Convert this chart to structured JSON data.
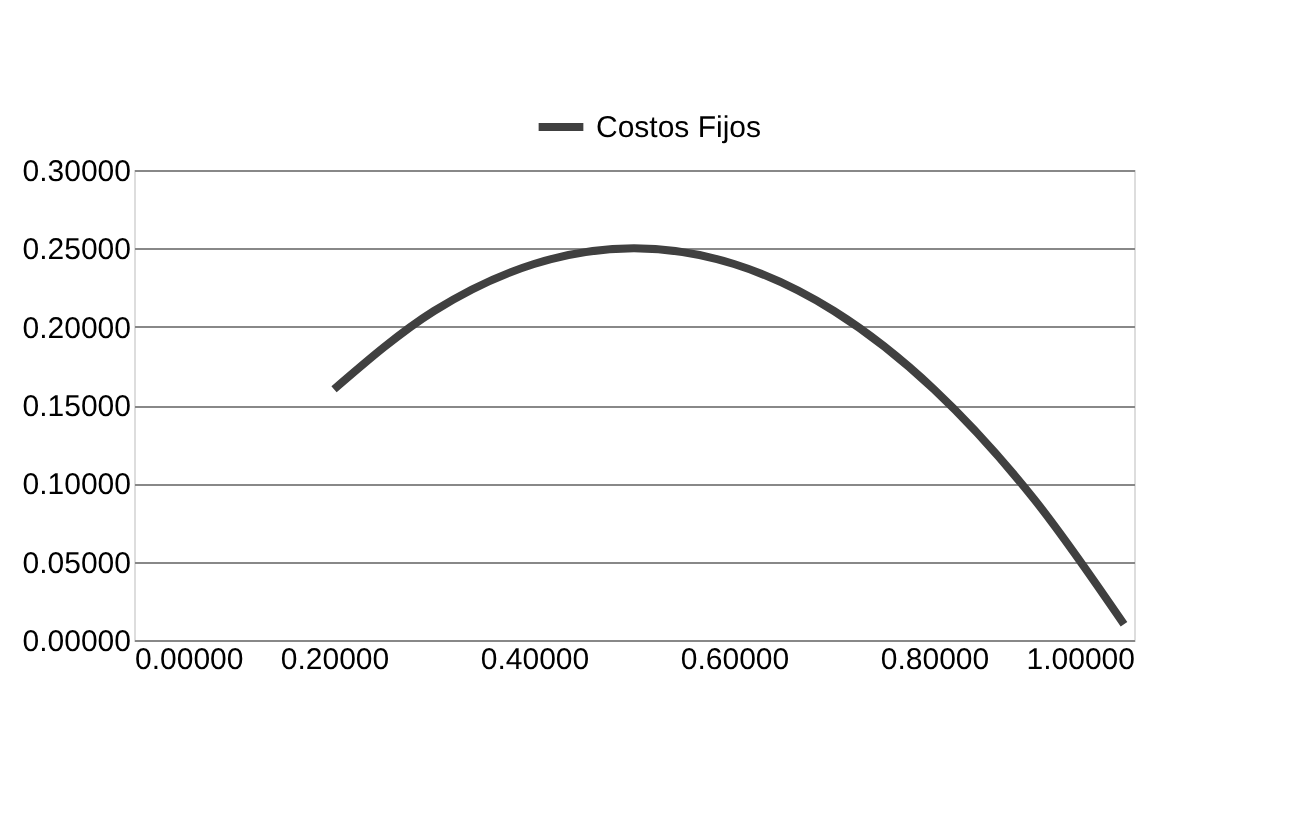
{
  "chart_data": {
    "type": "line",
    "x": [
      0.2,
      0.3,
      0.4,
      0.5,
      0.6,
      0.7,
      0.8,
      0.9,
      0.99
    ],
    "series": [
      {
        "name": "Costos Fijos",
        "color": "#404040",
        "values": [
          0.16,
          0.21,
          0.24,
          0.25,
          0.24,
          0.21,
          0.16,
          0.09,
          0.01
        ]
      }
    ],
    "xlim": [
      0,
      1
    ],
    "xticks": [
      {
        "value": 0,
        "label": "0.00000"
      },
      {
        "value": 0.2,
        "label": "0.20000"
      },
      {
        "value": 0.4,
        "label": "0.40000"
      },
      {
        "value": 0.6,
        "label": "0.60000"
      },
      {
        "value": 0.8,
        "label": "0.80000"
      },
      {
        "value": 1,
        "label": "1.00000"
      }
    ],
    "ylim": [
      0,
      0.3
    ],
    "yticks": [
      {
        "value": 0,
        "label": "0.00000"
      },
      {
        "value": 0.05,
        "label": "0.05000"
      },
      {
        "value": 0.1,
        "label": "0.10000"
      },
      {
        "value": 0.15,
        "label": "0.15000"
      },
      {
        "value": 0.2,
        "label": "0.20000"
      },
      {
        "value": 0.25,
        "label": "0.25000"
      },
      {
        "value": 0.3,
        "label": "0.30000"
      }
    ],
    "grid": "y",
    "legend": "top",
    "marker": "none",
    "line_style": "solid"
  }
}
